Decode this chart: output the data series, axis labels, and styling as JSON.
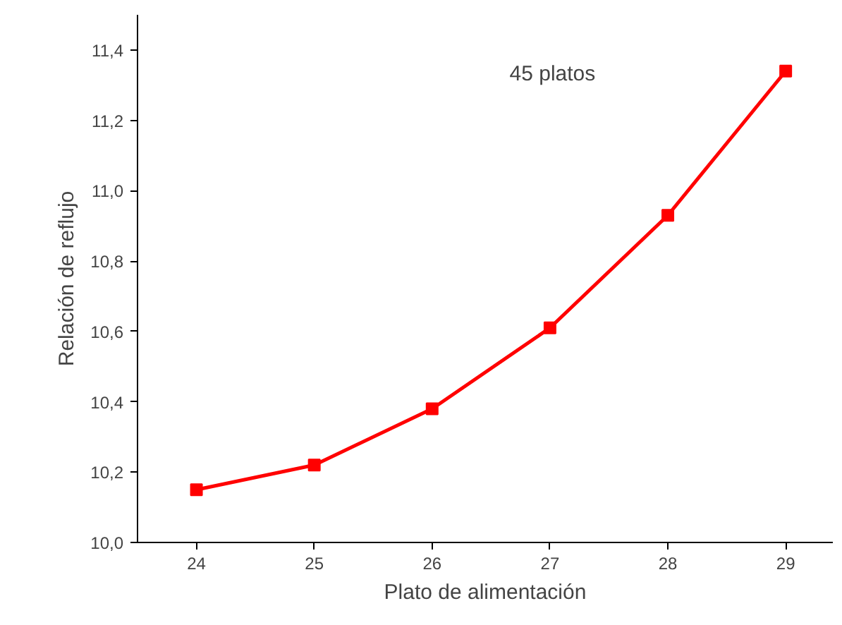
{
  "chart_data": {
    "type": "line",
    "xlabel": "Plato de alimentación",
    "ylabel": "Relación de reflujo",
    "annotations": [
      "45 platos"
    ],
    "x": [
      24,
      25,
      26,
      27,
      28,
      29
    ],
    "series": [
      {
        "color": "#ff0000",
        "values": [
          10.15,
          10.22,
          10.38,
          10.61,
          10.93,
          11.34
        ]
      }
    ],
    "xlim": [
      23.5,
      29.4
    ],
    "ylim": [
      10.0,
      11.5
    ],
    "xticks": [
      24,
      25,
      26,
      27,
      28,
      29
    ],
    "yticks": [
      {
        "value": 10.0,
        "label": "10,0"
      },
      {
        "value": 10.2,
        "label": "10,2"
      },
      {
        "value": 10.4,
        "label": "10,4"
      },
      {
        "value": 10.6,
        "label": "10,6"
      },
      {
        "value": 10.8,
        "label": "10,8"
      },
      {
        "value": 11.0,
        "label": "11,0"
      },
      {
        "value": 11.2,
        "label": "11,2"
      },
      {
        "value": 11.4,
        "label": "11,4"
      }
    ],
    "marker": "square",
    "line_style": "solid",
    "grid": false
  }
}
